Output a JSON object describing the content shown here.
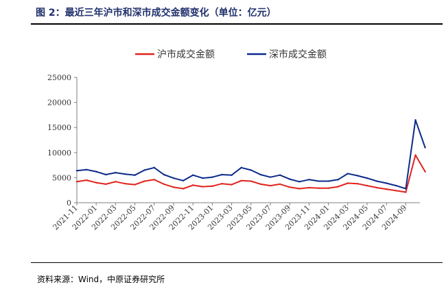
{
  "figure": {
    "title": "图 2：最近三年沪市和深市成交金额变化（单位：亿元）",
    "source": "资料来源：Wind，中原证券研究所"
  },
  "chart_data": {
    "type": "line",
    "title": "",
    "xlabel": "",
    "ylabel": "",
    "ylim": [
      0,
      25000
    ],
    "yticks": [
      0,
      5000,
      10000,
      15000,
      20000,
      25000
    ],
    "xticks": [
      "2021-11",
      "2022-01",
      "2022-03",
      "2022-05",
      "2022-07",
      "2022-09",
      "2022-11",
      "2023-01",
      "2023-03",
      "2023-05",
      "2023-07",
      "2023-09",
      "2023-11",
      "2024-01",
      "2024-03",
      "2024-05",
      "2024-07",
      "2024-09"
    ],
    "x": [
      "2021-11",
      "2021-12",
      "2022-01",
      "2022-02",
      "2022-03",
      "2022-04",
      "2022-05",
      "2022-06",
      "2022-07",
      "2022-08",
      "2022-09",
      "2022-10",
      "2022-11",
      "2022-12",
      "2023-01",
      "2023-02",
      "2023-03",
      "2023-04",
      "2023-05",
      "2023-06",
      "2023-07",
      "2023-08",
      "2023-09",
      "2023-10",
      "2023-11",
      "2023-12",
      "2024-01",
      "2024-02",
      "2024-03",
      "2024-04",
      "2024-05",
      "2024-06",
      "2024-07",
      "2024-08",
      "2024-09",
      "2024-10",
      "2024-11"
    ],
    "grid": false,
    "legend": "top-center",
    "series": [
      {
        "name": "沪市成交金额",
        "color": "#e0231c",
        "values": [
          4200,
          4500,
          4000,
          3700,
          4200,
          3800,
          3600,
          4300,
          4600,
          3700,
          3100,
          2800,
          3500,
          3200,
          3300,
          3800,
          3600,
          4400,
          4300,
          3700,
          3400,
          3700,
          3100,
          2800,
          3000,
          2900,
          2900,
          3200,
          3900,
          3800,
          3400,
          3000,
          2700,
          2400,
          2100,
          9500,
          6200
        ]
      },
      {
        "name": "深市成交金额",
        "color": "#0b2a8a",
        "values": [
          6400,
          6600,
          6200,
          5600,
          6000,
          5700,
          5500,
          6500,
          7000,
          5600,
          4900,
          4400,
          5500,
          4900,
          5100,
          5600,
          5500,
          7000,
          6500,
          5600,
          5100,
          5500,
          4700,
          4200,
          4600,
          4300,
          4300,
          4600,
          5800,
          5400,
          4900,
          4300,
          3900,
          3400,
          2800,
          16500,
          11000
        ]
      }
    ]
  }
}
